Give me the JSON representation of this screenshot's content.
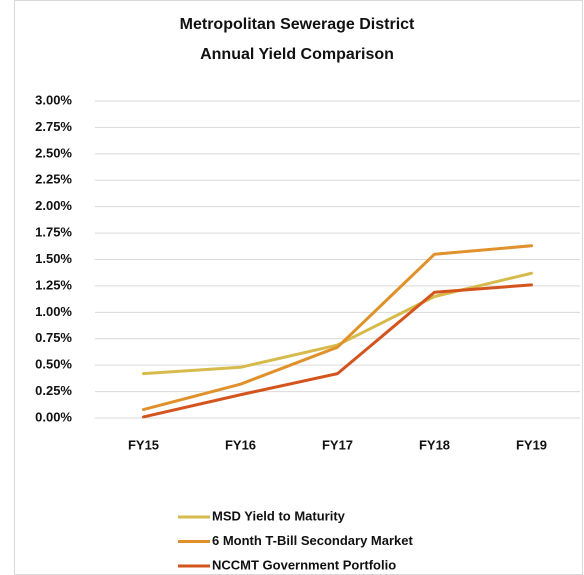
{
  "chart_data": {
    "type": "line",
    "title": [
      "Metropolitan Sewerage District",
      "Annual Yield Comparison"
    ],
    "categories": [
      "FY15",
      "FY16",
      "FY17",
      "FY18",
      "FY19"
    ],
    "series": [
      {
        "name": "MSD Yield to Maturity",
        "color": "#d6bb4c",
        "values": [
          0.42,
          0.48,
          0.69,
          1.15,
          1.37
        ]
      },
      {
        "name": "6 Month T-Bill Secondary Market",
        "color": "#e0912b",
        "values": [
          0.08,
          0.32,
          0.67,
          1.55,
          1.63
        ]
      },
      {
        "name": "NCCMT Government Portfolio",
        "color": "#d4541e",
        "values": [
          0.01,
          0.22,
          0.42,
          1.19,
          1.26
        ]
      }
    ],
    "ylim": [
      0,
      3
    ],
    "yticks": [
      {
        "value": 0,
        "label": "0.00%"
      },
      {
        "value": 0.25,
        "label": "0.25%"
      },
      {
        "value": 0.5,
        "label": "0.50%"
      },
      {
        "value": 0.75,
        "label": "0.75%"
      },
      {
        "value": 1,
        "label": "1.00%"
      },
      {
        "value": 1.25,
        "label": "1.25%"
      },
      {
        "value": 1.5,
        "label": "1.50%"
      },
      {
        "value": 1.75,
        "label": "1.75%"
      },
      {
        "value": 2,
        "label": "2.00%"
      },
      {
        "value": 2.25,
        "label": "2.25%"
      },
      {
        "value": 2.5,
        "label": "2.50%"
      },
      {
        "value": 2.75,
        "label": "2.75%"
      },
      {
        "value": 3,
        "label": "3.00%"
      }
    ],
    "grid": true,
    "legend": "bottom"
  }
}
